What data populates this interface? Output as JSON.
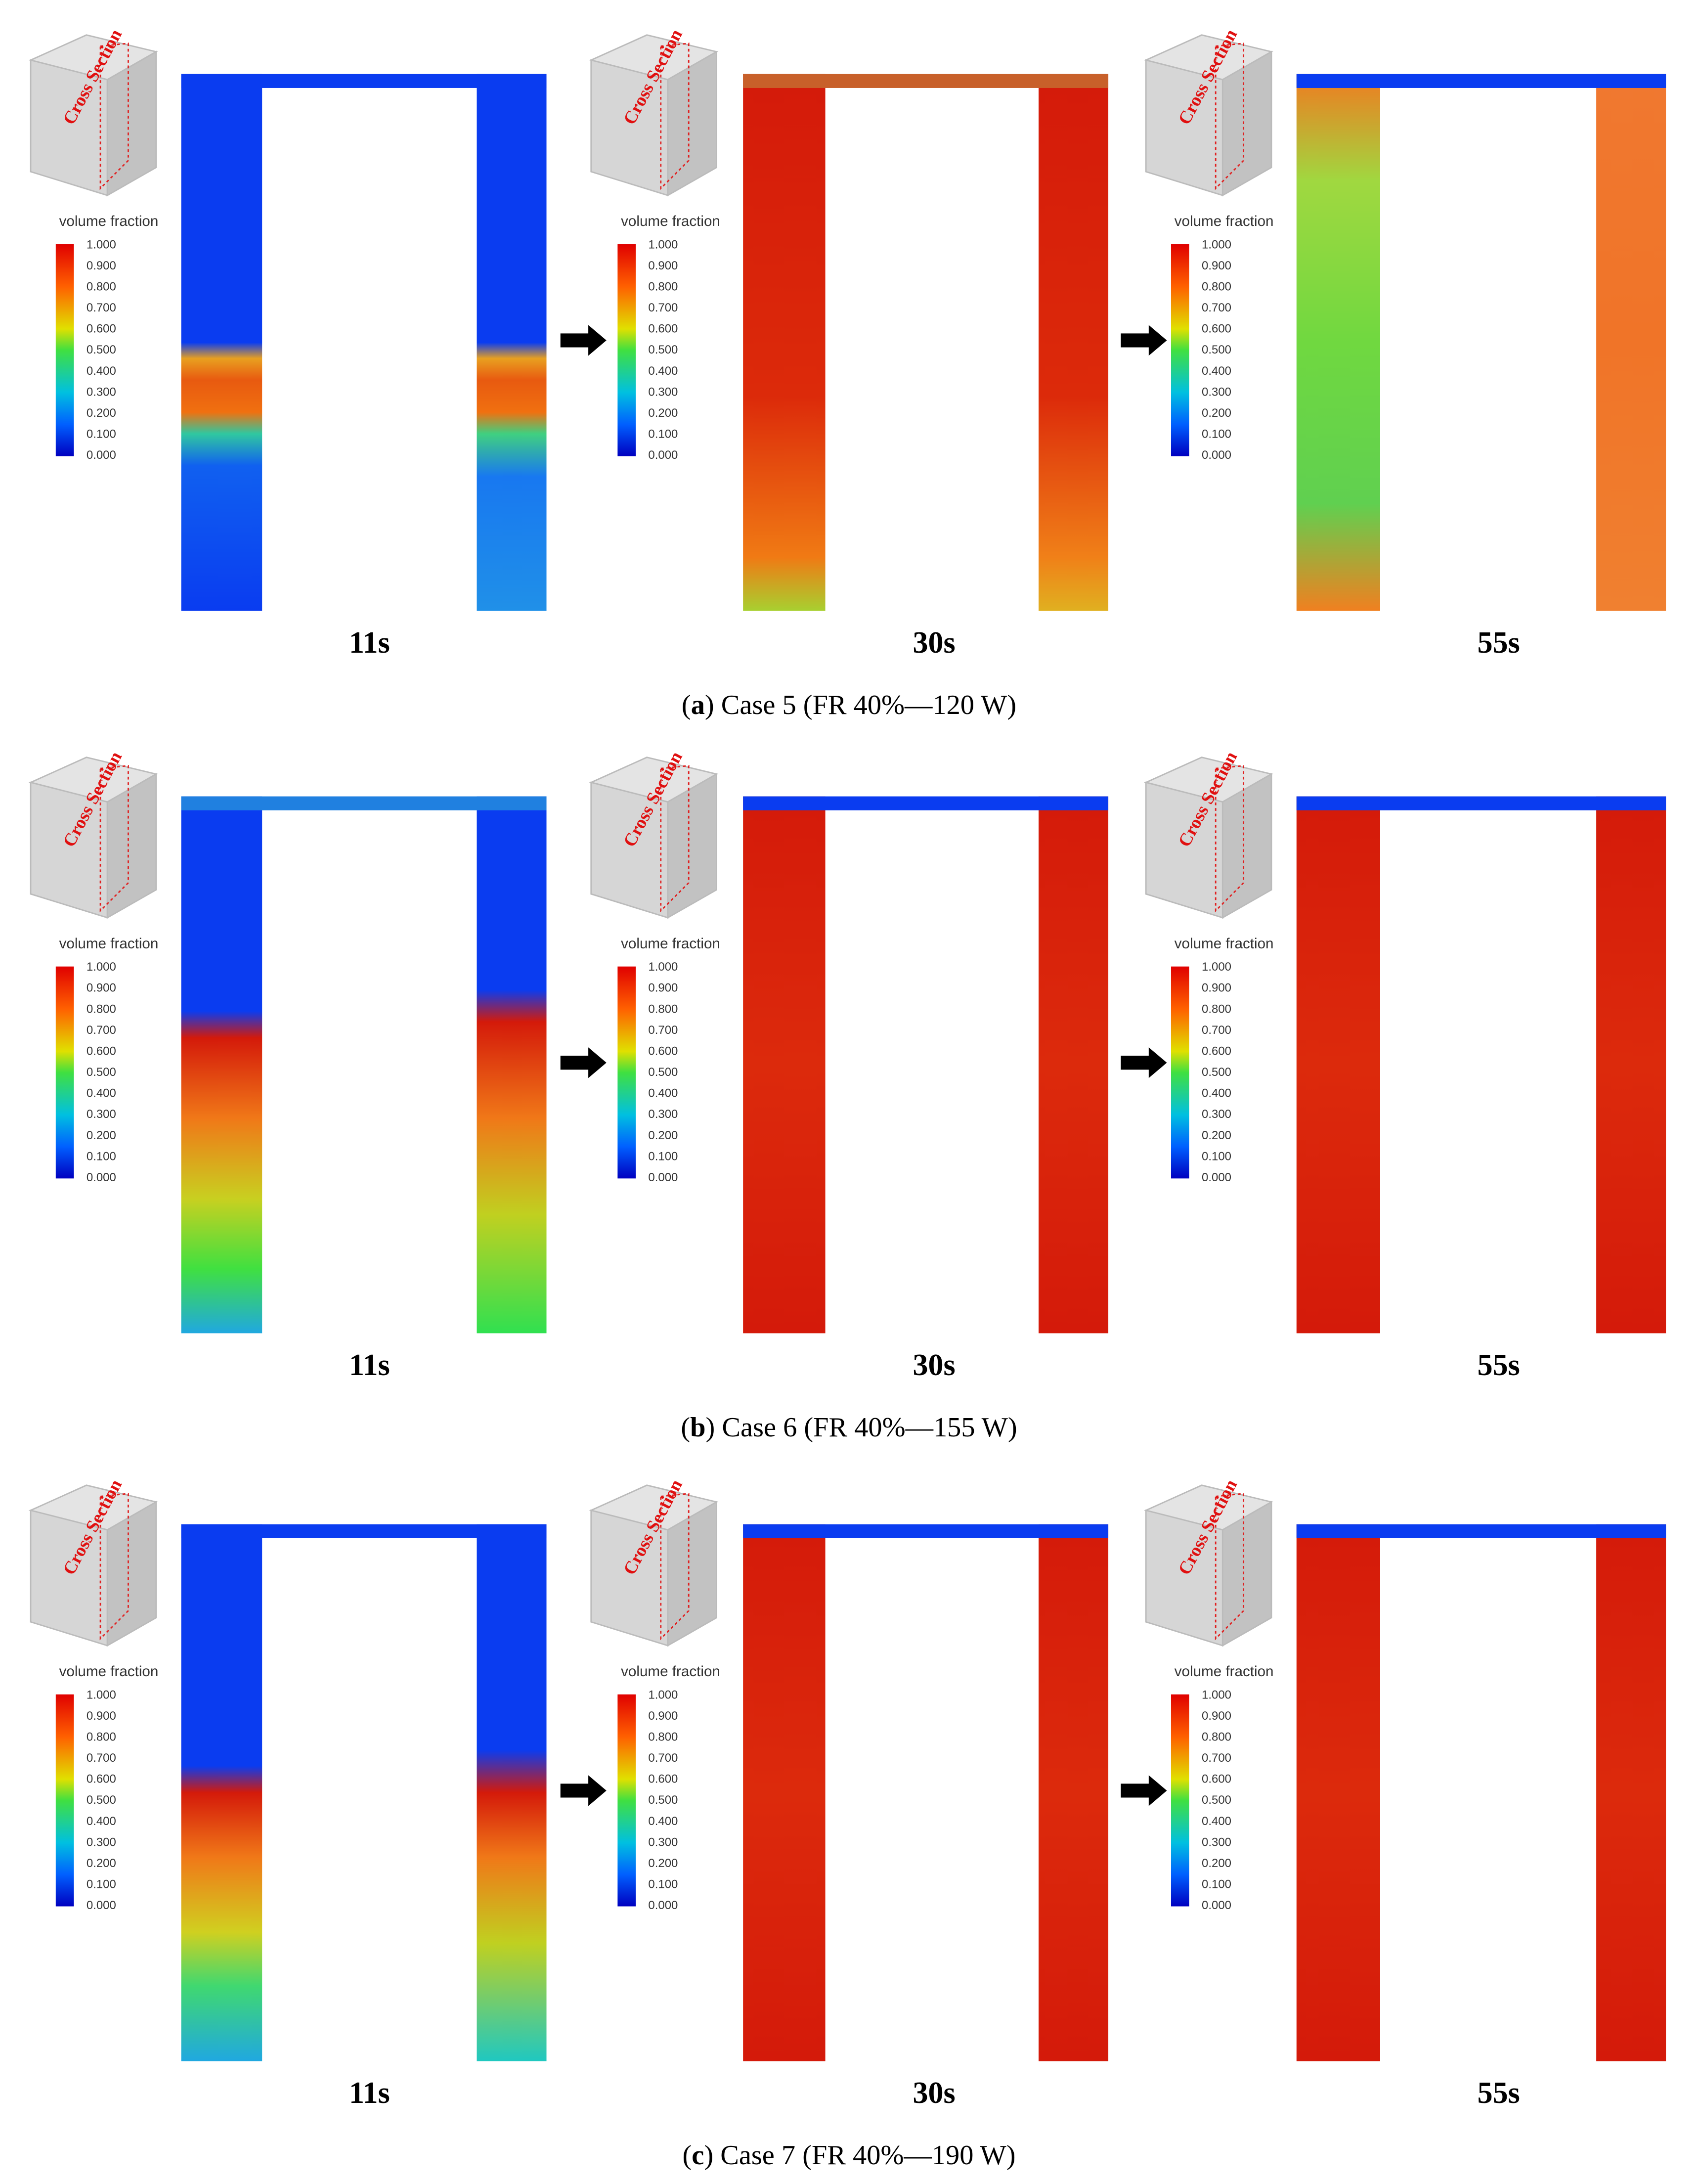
{
  "figure": {
    "legend_title": "volume fraction",
    "legend_ticks": [
      "1.000",
      "0.900",
      "0.800",
      "0.700",
      "0.600",
      "0.500",
      "0.400",
      "0.300",
      "0.200",
      "0.100",
      "0.000"
    ],
    "cube_label": "Cross Section",
    "rows": [
      {
        "times": [
          "11s",
          "30s",
          "55s"
        ],
        "caption": {
          "open": "(",
          "letter": "a",
          "rest": ") Case 5 (FR 40%—120 W)"
        }
      },
      {
        "times": [
          "11s",
          "30s",
          "55s"
        ],
        "caption": {
          "open": "(",
          "letter": "b",
          "rest": ") Case 6 (FR 40%—155 W)"
        }
      },
      {
        "times": [
          "11s",
          "30s",
          "55s"
        ],
        "caption": {
          "open": "(",
          "letter": "c",
          "rest": ") Case 7 (FR 40%—190 W)"
        }
      }
    ]
  }
}
